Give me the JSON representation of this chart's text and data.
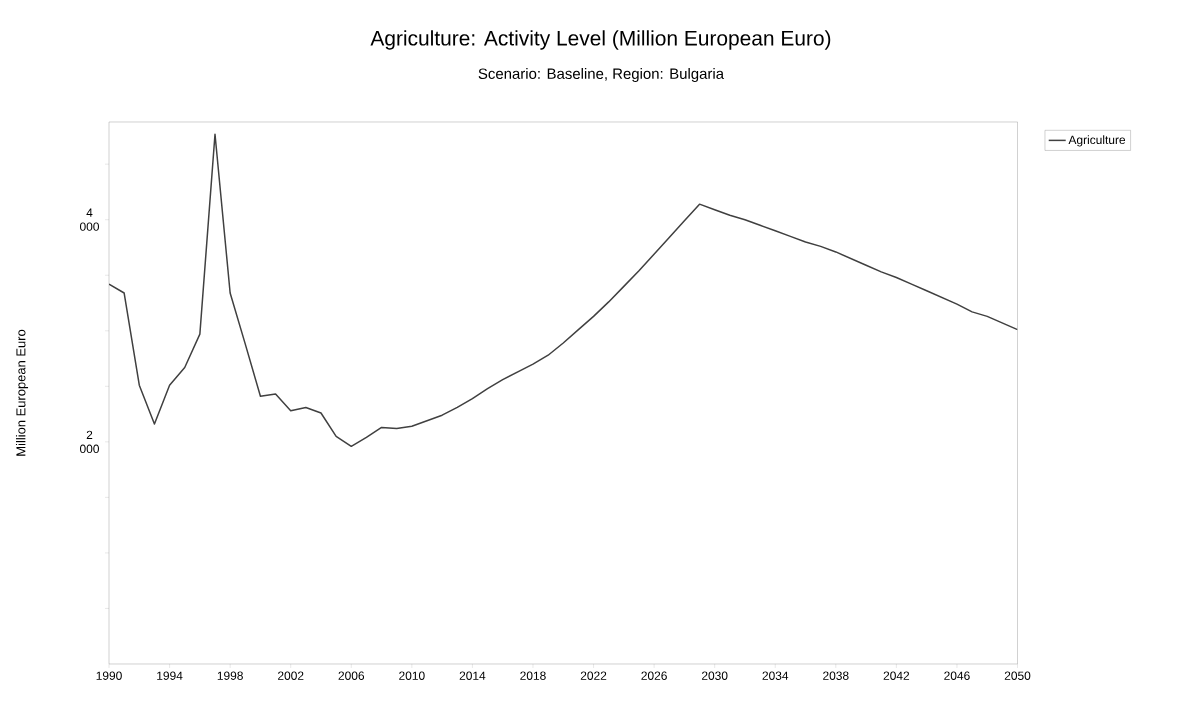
{
  "chart_data": {
    "type": "line",
    "title": "Agriculture: Activity Level (Million European Euro)",
    "subtitle": "Scenario: Baseline, Region: Bulgaria",
    "ylabel": "Million European Euro",
    "x": [
      1990,
      1991,
      1992,
      1993,
      1994,
      1995,
      1996,
      1997,
      1998,
      1999,
      2000,
      2001,
      2002,
      2003,
      2004,
      2005,
      2006,
      2007,
      2008,
      2009,
      2010,
      2011,
      2012,
      2013,
      2014,
      2015,
      2016,
      2017,
      2018,
      2019,
      2020,
      2021,
      2022,
      2023,
      2024,
      2025,
      2026,
      2027,
      2028,
      2029,
      2030,
      2031,
      2032,
      2033,
      2034,
      2035,
      2036,
      2037,
      2038,
      2039,
      2040,
      2041,
      2042,
      2043,
      2044,
      2045,
      2046,
      2047,
      2048,
      2049,
      2050
    ],
    "series": [
      {
        "name": "Agriculture",
        "color": "#404040",
        "values": [
          3420,
          3340,
          2510,
          2160,
          2510,
          2670,
          2970,
          4770,
          3340,
          2880,
          2410,
          2430,
          2280,
          2310,
          2260,
          2050,
          1960,
          2040,
          2130,
          2120,
          2140,
          2190,
          2240,
          2310,
          2390,
          2480,
          2560,
          2630,
          2700,
          2780,
          2890,
          3010,
          3130,
          3260,
          3400,
          3540,
          3690,
          3840,
          3990,
          4140,
          4090,
          4040,
          4000,
          3950,
          3900,
          3850,
          3800,
          3760,
          3710,
          3650,
          3590,
          3530,
          3480,
          3420,
          3360,
          3300,
          3240,
          3170,
          3130,
          3070,
          3010
        ]
      }
    ],
    "xlim": [
      1990,
      2050
    ],
    "xticks": [
      1990,
      1994,
      1998,
      2002,
      2006,
      2010,
      2014,
      2018,
      2022,
      2026,
      2030,
      2034,
      2038,
      2042,
      2046,
      2050
    ],
    "ylim": [
      0,
      4880
    ],
    "yticks": [
      {
        "value": 500,
        "label": null
      },
      {
        "value": 1000,
        "label": null
      },
      {
        "value": 1500,
        "label": null
      },
      {
        "value": 2000,
        "label": "2 000"
      },
      {
        "value": 2500,
        "label": null
      },
      {
        "value": 3000,
        "label": null
      },
      {
        "value": 3500,
        "label": null
      },
      {
        "value": 4000,
        "label": "4 000"
      },
      {
        "value": 4500,
        "label": null
      }
    ],
    "grid": false,
    "legend": "top right"
  }
}
